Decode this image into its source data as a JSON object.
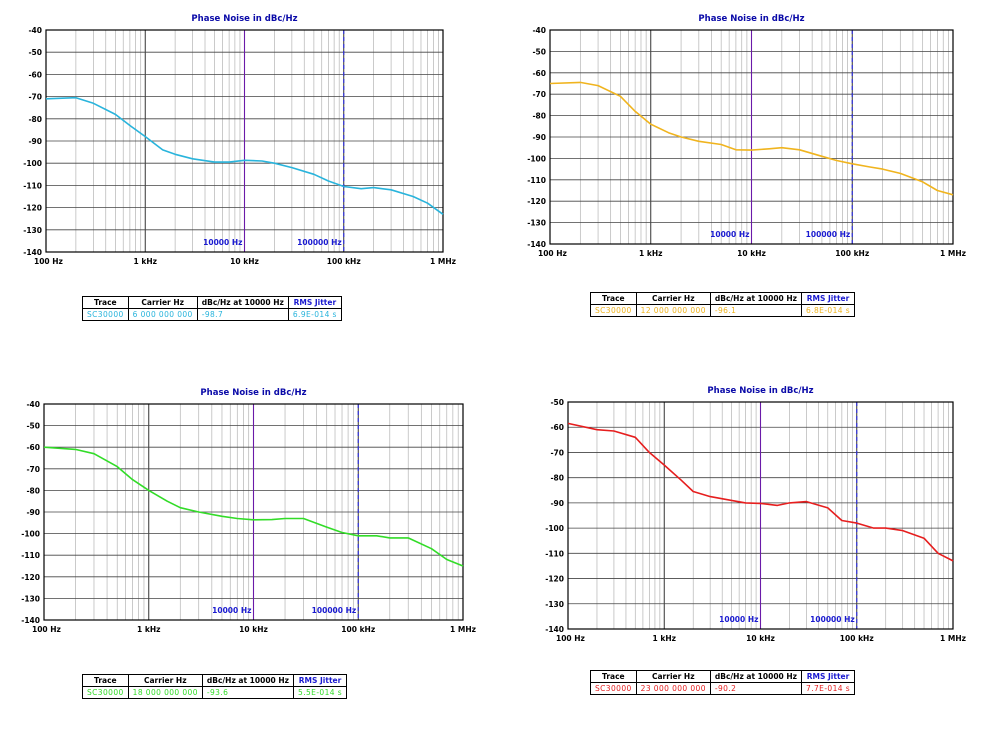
{
  "chart_data": [
    {
      "type": "line",
      "title": "Phase Noise in dBc/Hz",
      "xscale": "log",
      "xlim": [
        100,
        1000000
      ],
      "ylim": [
        -140,
        -40
      ],
      "xtick_labels": [
        "100 Hz",
        "1 kHz",
        "10 kHz",
        "100 kHz",
        "1 MHz"
      ],
      "ytick_labels": [
        "-40",
        "-50",
        "-60",
        "-70",
        "-80",
        "-90",
        "-100",
        "-110",
        "-120",
        "-130",
        "-140"
      ],
      "markers": [
        {
          "label": "10000 Hz",
          "x": 10000
        },
        {
          "label": "100000 Hz",
          "x": 100000
        }
      ],
      "grid": true,
      "color": "#29b4dc",
      "series": [
        {
          "name": "SC30000",
          "points": [
            [
              100,
              -71
            ],
            [
              200,
              -70.5
            ],
            [
              300,
              -73
            ],
            [
              500,
              -78
            ],
            [
              700,
              -83
            ],
            [
              1000,
              -88
            ],
            [
              1500,
              -94
            ],
            [
              2000,
              -96
            ],
            [
              3000,
              -98
            ],
            [
              5000,
              -99.5
            ],
            [
              7000,
              -99.5
            ],
            [
              10000,
              -98.7
            ],
            [
              15000,
              -99
            ],
            [
              20000,
              -100
            ],
            [
              30000,
              -102
            ],
            [
              50000,
              -105
            ],
            [
              70000,
              -108
            ],
            [
              100000,
              -110.5
            ],
            [
              150000,
              -111.5
            ],
            [
              200000,
              -111
            ],
            [
              300000,
              -112
            ],
            [
              500000,
              -115
            ],
            [
              700000,
              -118
            ],
            [
              1000000,
              -123
            ]
          ]
        }
      ],
      "table": {
        "headers": [
          "Trace",
          "Carrier Hz",
          "dBc/Hz at 10000 Hz",
          "RMS Jitter"
        ],
        "row": [
          "SC30000",
          "6 000 000 000",
          "-98.7",
          "6.9E-014 s"
        ]
      }
    },
    {
      "type": "line",
      "title": "Phase Noise in dBc/Hz",
      "xscale": "log",
      "xlim": [
        100,
        1000000
      ],
      "ylim": [
        -140,
        -40
      ],
      "xtick_labels": [
        "100 Hz",
        "1 kHz",
        "10 kHz",
        "100 kHz",
        "1 MHz"
      ],
      "ytick_labels": [
        "-40",
        "-50",
        "-60",
        "-70",
        "-80",
        "-90",
        "-100",
        "-110",
        "-120",
        "-130",
        "-140"
      ],
      "markers": [
        {
          "label": "10000 Hz",
          "x": 10000
        },
        {
          "label": "100000 Hz",
          "x": 100000
        }
      ],
      "grid": true,
      "color": "#f0b41e",
      "series": [
        {
          "name": "SC30000",
          "points": [
            [
              100,
              -65
            ],
            [
              200,
              -64.5
            ],
            [
              300,
              -66
            ],
            [
              500,
              -71
            ],
            [
              700,
              -78
            ],
            [
              1000,
              -84
            ],
            [
              1500,
              -88
            ],
            [
              2000,
              -90
            ],
            [
              3000,
              -92
            ],
            [
              5000,
              -93.5
            ],
            [
              7000,
              -96
            ],
            [
              10000,
              -96.1
            ],
            [
              15000,
              -95.5
            ],
            [
              20000,
              -95
            ],
            [
              30000,
              -96
            ],
            [
              50000,
              -99
            ],
            [
              70000,
              -101
            ],
            [
              100000,
              -102.5
            ],
            [
              150000,
              -104
            ],
            [
              200000,
              -105
            ],
            [
              300000,
              -107
            ],
            [
              500000,
              -111
            ],
            [
              700000,
              -115
            ],
            [
              1000000,
              -117
            ]
          ]
        }
      ],
      "table": {
        "headers": [
          "Trace",
          "Carrier Hz",
          "dBc/Hz at 10000 Hz",
          "RMS Jitter"
        ],
        "row": [
          "SC30000",
          "12 000 000 000",
          "-96.1",
          "6.8E-014 s"
        ]
      }
    },
    {
      "type": "line",
      "title": "Phase Noise in dBc/Hz",
      "xscale": "log",
      "xlim": [
        100,
        1000000
      ],
      "ylim": [
        -140,
        -40
      ],
      "xtick_labels": [
        "100 Hz",
        "1 kHz",
        "10 kHz",
        "100 kHz",
        "1 MHz"
      ],
      "ytick_labels": [
        "-40",
        "-50",
        "-60",
        "-70",
        "-80",
        "-90",
        "-100",
        "-110",
        "-120",
        "-130",
        "-140"
      ],
      "markers": [
        {
          "label": "10000 Hz",
          "x": 10000
        },
        {
          "label": "100000 Hz",
          "x": 100000
        }
      ],
      "grid": true,
      "color": "#32dc28",
      "series": [
        {
          "name": "SC30000",
          "points": [
            [
              100,
              -60
            ],
            [
              200,
              -61
            ],
            [
              300,
              -63
            ],
            [
              500,
              -69
            ],
            [
              700,
              -75
            ],
            [
              1000,
              -80
            ],
            [
              1500,
              -85
            ],
            [
              2000,
              -88
            ],
            [
              3000,
              -90
            ],
            [
              5000,
              -92
            ],
            [
              7000,
              -93
            ],
            [
              10000,
              -93.6
            ],
            [
              15000,
              -93.5
            ],
            [
              20000,
              -93
            ],
            [
              30000,
              -93
            ],
            [
              50000,
              -97
            ],
            [
              70000,
              -99.5
            ],
            [
              100000,
              -101
            ],
            [
              150000,
              -101
            ],
            [
              200000,
              -102
            ],
            [
              300000,
              -102
            ],
            [
              500000,
              -107
            ],
            [
              700000,
              -112
            ],
            [
              1000000,
              -115
            ]
          ]
        }
      ],
      "table": {
        "headers": [
          "Trace",
          "Carrier Hz",
          "dBc/Hz at 10000 Hz",
          "RMS Jitter"
        ],
        "row": [
          "SC30000",
          "18 000 000 000",
          "-93.6",
          "5.5E-014 s"
        ]
      }
    },
    {
      "type": "line",
      "title": "Phase Noise in dBc/Hz",
      "xscale": "log",
      "xlim": [
        100,
        1000000
      ],
      "ylim": [
        -140,
        -50
      ],
      "xtick_labels": [
        "100 Hz",
        "1 kHz",
        "10 kHz",
        "100 kHz",
        "1 MHz"
      ],
      "ytick_labels": [
        "-50",
        "-60",
        "-70",
        "-80",
        "-90",
        "-100",
        "-110",
        "-120",
        "-130",
        "-140"
      ],
      "markers": [
        {
          "label": "10000 Hz",
          "x": 10000
        },
        {
          "label": "100000 Hz",
          "x": 100000
        }
      ],
      "grid": true,
      "color": "#e61e1e",
      "series": [
        {
          "name": "SC30000",
          "points": [
            [
              100,
              -58.5
            ],
            [
              200,
              -61
            ],
            [
              300,
              -61.5
            ],
            [
              500,
              -64
            ],
            [
              700,
              -70
            ],
            [
              1000,
              -75
            ],
            [
              1500,
              -81
            ],
            [
              2000,
              -85.5
            ],
            [
              3000,
              -87.5
            ],
            [
              5000,
              -89
            ],
            [
              7000,
              -90
            ],
            [
              10000,
              -90.2
            ],
            [
              15000,
              -91
            ],
            [
              20000,
              -90
            ],
            [
              30000,
              -89.5
            ],
            [
              50000,
              -92
            ],
            [
              70000,
              -97
            ],
            [
              100000,
              -98
            ],
            [
              150000,
              -100
            ],
            [
              200000,
              -100
            ],
            [
              300000,
              -101
            ],
            [
              500000,
              -104
            ],
            [
              700000,
              -110
            ],
            [
              1000000,
              -113
            ]
          ]
        }
      ],
      "table": {
        "headers": [
          "Trace",
          "Carrier Hz",
          "dBc/Hz at 10000 Hz",
          "RMS Jitter"
        ],
        "row": [
          "SC30000",
          "23 000 000 000",
          "-90.2",
          "7.7E-014 s"
        ]
      }
    }
  ]
}
